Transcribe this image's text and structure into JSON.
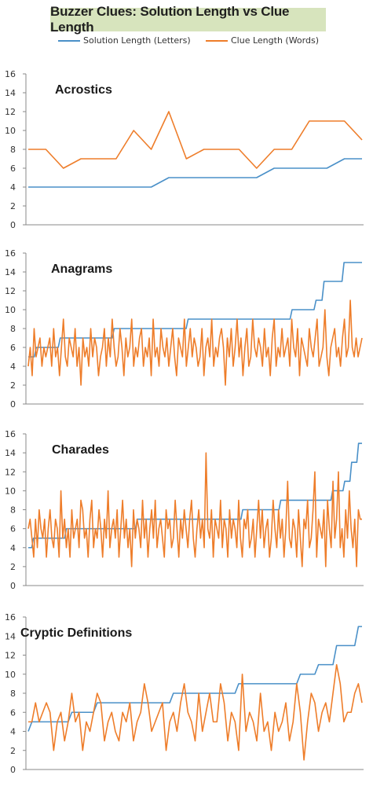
{
  "title": "Buzzer Clues: Solution Length vs Clue Length",
  "colors": {
    "solution": "#4a90c8",
    "clue": "#ee7d2a",
    "title_bg": "#d7e4bd",
    "axis": "#888888"
  },
  "legend": [
    {
      "name": "Solution Length (Letters)",
      "color": "#4a90c8"
    },
    {
      "name": "Clue Length (Words)",
      "color": "#ee7d2a"
    }
  ],
  "chart_data": [
    {
      "type": "line",
      "title": "Acrostics",
      "ylim": [
        0,
        16
      ],
      "yticks": [
        0,
        2,
        4,
        6,
        8,
        10,
        12,
        14,
        16
      ],
      "legend_position": "top",
      "series": [
        {
          "name": "Solution Length (Letters)",
          "values": [
            4,
            4,
            4,
            4,
            4,
            4,
            4,
            4,
            5,
            5,
            5,
            5,
            5,
            5,
            6,
            6,
            6,
            6,
            7,
            7
          ]
        },
        {
          "name": "Clue Length (Words)",
          "values": [
            8,
            8,
            6,
            7,
            7,
            7,
            10,
            8,
            12,
            7,
            8,
            8,
            8,
            6,
            8,
            8,
            11,
            11,
            11,
            9
          ]
        }
      ]
    },
    {
      "type": "line",
      "title": "Anagrams",
      "ylim": [
        0,
        16
      ],
      "yticks": [
        0,
        2,
        4,
        6,
        8,
        10,
        12,
        14,
        16
      ],
      "series": [
        {
          "name": "Solution Length (Letters)",
          "values": [
            5,
            5,
            5,
            5,
            6,
            6,
            6,
            6,
            6,
            6,
            6,
            6,
            6,
            6,
            6,
            6,
            7,
            7,
            7,
            7,
            7,
            7,
            7,
            7,
            7,
            7,
            7,
            7,
            7,
            7,
            7,
            7,
            7,
            7,
            7,
            7,
            7,
            7,
            7,
            7,
            7,
            7,
            7,
            8,
            8,
            8,
            8,
            8,
            8,
            8,
            8,
            8,
            8,
            8,
            8,
            8,
            8,
            8,
            8,
            8,
            8,
            8,
            8,
            8,
            8,
            8,
            8,
            8,
            8,
            8,
            8,
            8,
            8,
            8,
            8,
            8,
            8,
            8,
            8,
            8,
            9,
            9,
            9,
            9,
            9,
            9,
            9,
            9,
            9,
            9,
            9,
            9,
            9,
            9,
            9,
            9,
            9,
            9,
            9,
            9,
            9,
            9,
            9,
            9,
            9,
            9,
            9,
            9,
            9,
            9,
            9,
            9,
            9,
            9,
            9,
            9,
            9,
            9,
            9,
            9,
            9,
            9,
            9,
            9,
            9,
            9,
            9,
            9,
            9,
            9,
            9,
            9,
            10,
            10,
            10,
            10,
            10,
            10,
            10,
            10,
            10,
            10,
            10,
            10,
            11,
            11,
            11,
            11,
            13,
            13,
            13,
            13,
            13,
            13,
            13,
            13,
            13,
            13,
            15,
            15,
            15,
            15,
            15,
            15,
            15,
            15,
            15,
            15
          ]
        },
        {
          "name": "Clue Length (Words)",
          "values": [
            4,
            6,
            3,
            8,
            5,
            6,
            7,
            4,
            6,
            5,
            6,
            7,
            4,
            8,
            5,
            6,
            3,
            6,
            9,
            5,
            4,
            7,
            6,
            5,
            8,
            4,
            6,
            2,
            7,
            5,
            6,
            4,
            8,
            5,
            7,
            6,
            3,
            5,
            6,
            8,
            4,
            7,
            5,
            9,
            6,
            4,
            5,
            8,
            6,
            3,
            7,
            5,
            6,
            9,
            4,
            6,
            5,
            7,
            8,
            4,
            6,
            5,
            7,
            3,
            9,
            5,
            6,
            4,
            8,
            6,
            5,
            7,
            4,
            6,
            8,
            5,
            3,
            7,
            6,
            5,
            9,
            4,
            6,
            8,
            5,
            7,
            6,
            4,
            5,
            8,
            3,
            6,
            7,
            5,
            9,
            4,
            6,
            5,
            7,
            8,
            6,
            2,
            7,
            5,
            8,
            4,
            6,
            9,
            5,
            7,
            3,
            6,
            8,
            4,
            5,
            9,
            6,
            5,
            7,
            6,
            4,
            8,
            5,
            6,
            3,
            7,
            9,
            4,
            6,
            5,
            8,
            5,
            6,
            7,
            4,
            9,
            6,
            5,
            8,
            3,
            7,
            6,
            5,
            4,
            8,
            6,
            5,
            7,
            9,
            4,
            5,
            6,
            10,
            5,
            3,
            6,
            7,
            8,
            5,
            6,
            4,
            7,
            9,
            5,
            6,
            11,
            6,
            5,
            7,
            5,
            6,
            7
          ]
        }
      ]
    },
    {
      "type": "line",
      "title": "Charades",
      "ylim": [
        0,
        16
      ],
      "yticks": [
        0,
        2,
        4,
        6,
        8,
        10,
        12,
        14,
        16
      ],
      "series": [
        {
          "name": "Solution Length (Letters)",
          "values": [
            4,
            4,
            4,
            5,
            5,
            5,
            5,
            5,
            5,
            5,
            5,
            5,
            5,
            5,
            5,
            5,
            5,
            5,
            5,
            5,
            5,
            5,
            6,
            6,
            6,
            6,
            6,
            6,
            6,
            6,
            6,
            6,
            6,
            6,
            6,
            6,
            6,
            6,
            6,
            6,
            6,
            6,
            6,
            6,
            6,
            6,
            6,
            6,
            6,
            6,
            6,
            6,
            6,
            6,
            6,
            6,
            6,
            6,
            6,
            6,
            6,
            6,
            6,
            7,
            7,
            7,
            7,
            7,
            7,
            7,
            7,
            7,
            7,
            7,
            7,
            7,
            7,
            7,
            7,
            7,
            7,
            7,
            7,
            7,
            7,
            7,
            7,
            7,
            7,
            7,
            7,
            7,
            7,
            7,
            7,
            7,
            7,
            7,
            7,
            7,
            7,
            7,
            7,
            7,
            7,
            7,
            7,
            7,
            7,
            7,
            7,
            7,
            7,
            7,
            7,
            7,
            7,
            7,
            7,
            7,
            7,
            7,
            7,
            7,
            8,
            8,
            8,
            8,
            8,
            8,
            8,
            8,
            8,
            8,
            8,
            8,
            8,
            8,
            8,
            8,
            8,
            8,
            8,
            8,
            8,
            8,
            9,
            9,
            9,
            9,
            9,
            9,
            9,
            9,
            9,
            9,
            9,
            9,
            9,
            9,
            9,
            9,
            9,
            9,
            9,
            9,
            9,
            9,
            9,
            9,
            9,
            9,
            9,
            9,
            9,
            9,
            10,
            10,
            10,
            10,
            10,
            10,
            10,
            11,
            11,
            11,
            11,
            13,
            13,
            13,
            13,
            15,
            15,
            15
          ]
        },
        {
          "name": "Clue Length (Words)",
          "values": [
            6,
            7,
            5,
            3,
            7,
            4,
            8,
            6,
            5,
            7,
            3,
            6,
            8,
            5,
            4,
            7,
            6,
            3,
            10,
            5,
            7,
            4,
            6,
            3,
            8,
            5,
            6,
            7,
            4,
            9,
            8,
            5,
            6,
            3,
            7,
            9,
            4,
            6,
            5,
            8,
            6,
            3,
            7,
            5,
            10,
            4,
            6,
            7,
            5,
            8,
            3,
            6,
            9,
            5,
            7,
            4,
            6,
            2,
            8,
            5,
            7,
            6,
            4,
            9,
            5,
            7,
            3,
            6,
            8,
            5,
            9,
            4,
            6,
            7,
            5,
            3,
            8,
            6,
            7,
            4,
            5,
            9,
            6,
            3,
            7,
            5,
            8,
            6,
            4,
            7,
            9,
            5,
            3,
            6,
            8,
            5,
            7,
            4,
            14,
            6,
            5,
            8,
            3,
            7,
            6,
            5,
            9,
            4,
            7,
            6,
            3,
            8,
            5,
            7,
            6,
            4,
            9,
            5,
            3,
            7,
            6,
            8,
            4,
            5,
            7,
            3,
            6,
            9,
            5,
            8,
            4,
            6,
            7,
            3,
            5,
            9,
            6,
            4,
            8,
            5,
            7,
            3,
            6,
            11,
            5,
            4,
            7,
            6,
            3,
            8,
            5,
            2,
            7,
            6,
            9,
            4,
            5,
            8,
            12,
            3,
            7,
            6,
            5,
            8,
            2,
            9,
            6,
            4,
            11,
            5,
            7,
            12,
            4,
            6,
            3,
            8,
            5,
            10,
            6,
            4,
            7,
            2,
            8,
            7,
            7
          ]
        }
      ]
    },
    {
      "type": "line",
      "title": "Cryptic Definitions",
      "ylim": [
        0,
        16
      ],
      "yticks": [
        0,
        2,
        4,
        6,
        8,
        10,
        12,
        14,
        16
      ],
      "series": [
        {
          "name": "Solution Length (Letters)",
          "values": [
            4,
            5,
            5,
            5,
            5,
            5,
            5,
            5,
            5,
            5,
            5,
            5,
            6,
            6,
            6,
            6,
            6,
            6,
            6,
            7,
            7,
            7,
            7,
            7,
            7,
            7,
            7,
            7,
            7,
            7,
            7,
            7,
            7,
            7,
            7,
            7,
            7,
            7,
            7,
            7,
            8,
            8,
            8,
            8,
            8,
            8,
            8,
            8,
            8,
            8,
            8,
            8,
            8,
            8,
            8,
            8,
            8,
            8,
            9,
            9,
            9,
            9,
            9,
            9,
            9,
            9,
            9,
            9,
            9,
            9,
            9,
            9,
            9,
            9,
            9,
            10,
            10,
            10,
            10,
            10,
            11,
            11,
            11,
            11,
            11,
            13,
            13,
            13,
            13,
            13,
            13,
            15,
            15
          ]
        },
        {
          "name": "Clue Length (Words)",
          "values": [
            5,
            5,
            7,
            5,
            6,
            7,
            6,
            2,
            5,
            6,
            3,
            5,
            8,
            5,
            6,
            2,
            5,
            4,
            6,
            8,
            7,
            3,
            5,
            6,
            4,
            3,
            6,
            5,
            7,
            3,
            5,
            6,
            9,
            7,
            4,
            5,
            6,
            7,
            2,
            5,
            6,
            4,
            7,
            9,
            6,
            5,
            3,
            8,
            4,
            6,
            8,
            5,
            5,
            9,
            7,
            3,
            6,
            5,
            2,
            10,
            4,
            6,
            5,
            3,
            8,
            4,
            5,
            2,
            6,
            4,
            5,
            7,
            3,
            5,
            9,
            6,
            1,
            5,
            8,
            7,
            4,
            6,
            7,
            5,
            8,
            11,
            9,
            5,
            6,
            6,
            8,
            9,
            7
          ]
        }
      ]
    }
  ]
}
